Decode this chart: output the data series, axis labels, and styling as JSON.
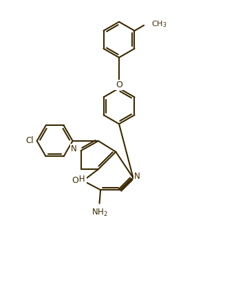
{
  "bg_color": "#ffffff",
  "line_color": "#3a2800",
  "line_width": 1.5,
  "font_size": 8.5,
  "figsize": [
    3.27,
    4.13
  ],
  "dpi": 100,
  "xlim": [
    0,
    10
  ],
  "ylim": [
    0,
    13
  ]
}
